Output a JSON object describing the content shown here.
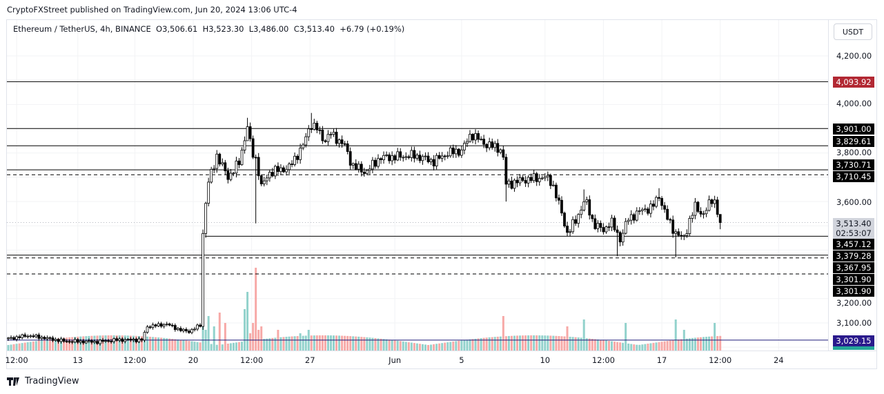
{
  "header": {
    "published": "CryptoFXStreet published on TradingView.com, Jun 20, 2024 13:06 UTC-4",
    "legend": "Ethereum / TetherUS, 4h, BINANCE  O3,506.61  H3,523.30  L3,486.00  C3,513.40  +6.79 (+0.19%)",
    "currency_button": "USDT"
  },
  "footer": {
    "brand": "TradingView"
  },
  "chart_data": {
    "type": "candlestick",
    "title": "Ethereum / TetherUS, 4h, BINANCE",
    "ohlc_last": {
      "open": 3506.61,
      "high": 3523.3,
      "low": 3486.0,
      "close": 3513.4,
      "change": 6.79,
      "change_pct": 0.19
    },
    "ylim": [
      3000,
      4260
    ],
    "y_ticks": [
      "4,200.00",
      "4,000.00",
      "3,800.00",
      "3,600.00",
      "3,200.00",
      "3,100.00"
    ],
    "y_tick_values": [
      4200,
      4000,
      3800,
      3600,
      3200,
      3100
    ],
    "x_ticks": [
      "12:00",
      "13",
      "12:00",
      "20",
      "12:00",
      "27",
      "Jun",
      "5",
      "10",
      "12:00",
      "17",
      "12:00",
      "24"
    ],
    "x_tick_candle_index": [
      3,
      25,
      45.5,
      66.5,
      87.5,
      108.5,
      139,
      163,
      193,
      214,
      235,
      256,
      277
    ],
    "candle_count": 257,
    "close_keypoints": [
      [
        0,
        3035
      ],
      [
        7,
        3048
      ],
      [
        12,
        3040
      ],
      [
        20,
        3025
      ],
      [
        32,
        3022
      ],
      [
        39,
        3030
      ],
      [
        48,
        3030
      ],
      [
        50,
        3085
      ],
      [
        57,
        3095
      ],
      [
        62,
        3070
      ],
      [
        65,
        3065
      ],
      [
        69,
        3090
      ],
      [
        70,
        3470
      ],
      [
        71.5,
        3660
      ],
      [
        75,
        3790
      ],
      [
        79,
        3700
      ],
      [
        83,
        3760
      ],
      [
        86,
        3910
      ],
      [
        87.6,
        3800
      ],
      [
        89.3,
        3770
      ],
      [
        91,
        3660
      ],
      [
        94,
        3720
      ],
      [
        101,
        3740
      ],
      [
        106,
        3830
      ],
      [
        108.7,
        3920
      ],
      [
        111,
        3900
      ],
      [
        113.6,
        3850
      ],
      [
        116,
        3880
      ],
      [
        121,
        3830
      ],
      [
        123.6,
        3750
      ],
      [
        128.5,
        3720
      ],
      [
        133.5,
        3780
      ],
      [
        146,
        3790
      ],
      [
        153,
        3765
      ],
      [
        158,
        3800
      ],
      [
        163,
        3810
      ],
      [
        166.5,
        3880
      ],
      [
        171,
        3840
      ],
      [
        176,
        3820
      ],
      [
        177.7,
        3810
      ],
      [
        179,
        3670
      ],
      [
        185.6,
        3690
      ],
      [
        193,
        3700
      ],
      [
        195.5,
        3680
      ],
      [
        198,
        3590
      ],
      [
        201,
        3470
      ],
      [
        204,
        3520
      ],
      [
        207.4,
        3610
      ],
      [
        210.4,
        3510
      ],
      [
        214,
        3480
      ],
      [
        216.6,
        3520
      ],
      [
        220,
        3445
      ],
      [
        223,
        3530
      ],
      [
        228,
        3565
      ],
      [
        231.5,
        3575
      ],
      [
        234,
        3625
      ],
      [
        236.5,
        3540
      ],
      [
        240,
        3470
      ],
      [
        242.7,
        3445
      ],
      [
        245,
        3520
      ],
      [
        247,
        3580
      ],
      [
        250,
        3545
      ],
      [
        253,
        3610
      ],
      [
        254.5,
        3600
      ],
      [
        255.3,
        3525
      ],
      [
        256,
        3513.4
      ]
    ],
    "wick_lows": [
      [
        89,
        3510
      ],
      [
        179,
        3600
      ],
      [
        86,
        3880
      ],
      [
        219,
        3375
      ],
      [
        240,
        3370
      ]
    ],
    "wick_highs": [
      [
        86,
        3945
      ],
      [
        109,
        3965
      ],
      [
        207,
        3650
      ],
      [
        234,
        3655
      ]
    ],
    "volume_spikes": [
      [
        70,
        110
      ],
      [
        71,
        30
      ],
      [
        72,
        50
      ],
      [
        74,
        35
      ],
      [
        76,
        55
      ],
      [
        78,
        40
      ],
      [
        85,
        60
      ],
      [
        86,
        85
      ],
      [
        87,
        25
      ],
      [
        88,
        40
      ],
      [
        89,
        120
      ],
      [
        90,
        30
      ],
      [
        91,
        35
      ],
      [
        97,
        30
      ],
      [
        105,
        25
      ],
      [
        108,
        30
      ],
      [
        178,
        50
      ],
      [
        201,
        35
      ],
      [
        207,
        45
      ],
      [
        222,
        40
      ],
      [
        240,
        45
      ],
      [
        243,
        30
      ],
      [
        254,
        40
      ]
    ],
    "horizontal_levels": [
      {
        "value": 4093.92,
        "label": "4,093.92",
        "style": "solid",
        "label_color": "#b22833"
      },
      {
        "value": 3901.0,
        "label": "3,901.00",
        "style": "solid",
        "label_color": "#000000"
      },
      {
        "value": 3829.61,
        "label": "3,829.61",
        "style": "solid",
        "label_color": "#000000"
      },
      {
        "value": 3730.71,
        "label": "3,730.71",
        "style": "solid",
        "label_color": "#000000"
      },
      {
        "value": 3710.45,
        "label": "3,710.45",
        "style": "dashed",
        "label_color": "#000000"
      },
      {
        "value": 3457.12,
        "label": "3,457.12",
        "style": "solid",
        "label_color": "#000000"
      },
      {
        "value": 3379.28,
        "label": "3,379.28",
        "style": "solid",
        "label_color": "#000000"
      },
      {
        "value": 3367.95,
        "label": "3,367.95",
        "style": "dashed",
        "label_color": "#000000"
      },
      {
        "value": 3301.9,
        "label": "3,301.90",
        "style": "dashed",
        "label_color": "#000000"
      },
      {
        "value": 3301.9,
        "label": "3,301.90",
        "style": "dashed",
        "label_color": "#000000"
      },
      {
        "value": 3029.15,
        "label": "3,029.15",
        "style": "solid",
        "label_color": "#2a1a8c"
      }
    ],
    "current_price": {
      "value": 3513.4,
      "label": "3,513.40",
      "countdown": "02:53:07"
    },
    "colors": {
      "up_volume": "#92d2cc",
      "down_volume": "#f7a9a7",
      "candle": "#000000",
      "grid": "#f2f3f5"
    }
  }
}
